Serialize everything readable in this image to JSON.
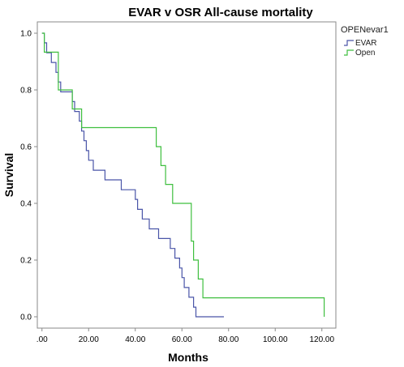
{
  "chart_data": {
    "type": "line",
    "title": "EVAR v OSR All-cause mortality",
    "xlabel": "Months",
    "ylabel": "Survival",
    "xlim": [
      -2,
      126
    ],
    "ylim": [
      -0.04,
      1.04
    ],
    "x_ticks": [
      0,
      20,
      40,
      60,
      80,
      100,
      120
    ],
    "x_tick_labels": [
      ".00",
      "20.00",
      "40.00",
      "60.00",
      "80.00",
      "100.00",
      "120.00"
    ],
    "y_ticks": [
      0.0,
      0.2,
      0.4,
      0.6,
      0.8,
      1.0
    ],
    "y_tick_labels": [
      "0.0",
      "0.2",
      "0.4",
      "0.6",
      "0.8",
      "1.0"
    ],
    "grid": false,
    "legend_title": "OPENevar1",
    "legend_position": "right",
    "step": true,
    "series": [
      {
        "name": "EVAR",
        "color": "#4a55a8",
        "x": [
          0,
          1,
          2,
          4,
          6,
          7,
          8,
          13,
          14,
          16,
          17,
          18,
          19,
          20,
          22,
          27,
          34,
          40,
          41,
          43,
          46,
          50,
          55,
          57,
          59,
          60,
          61,
          63,
          65,
          66,
          67,
          68,
          69,
          70,
          72,
          73,
          74,
          76,
          78
        ],
        "y": [
          1.0,
          0.966,
          0.931,
          0.897,
          0.862,
          0.828,
          0.793,
          0.759,
          0.724,
          0.69,
          0.655,
          0.621,
          0.586,
          0.552,
          0.517,
          0.483,
          0.448,
          0.414,
          0.379,
          0.345,
          0.31,
          0.276,
          0.241,
          0.207,
          0.172,
          0.138,
          0.103,
          0.069,
          0.034,
          0.0,
          0.0,
          0.0,
          0.0,
          0.0,
          0.0,
          0.0,
          0.0,
          0.0,
          0.0
        ]
      },
      {
        "name": "Open",
        "color": "#3fbf3f",
        "x": [
          0,
          1,
          7,
          13,
          17,
          49,
          51,
          53,
          56,
          64,
          65,
          67,
          69,
          70,
          121
        ],
        "y": [
          1.0,
          0.933,
          0.8,
          0.733,
          0.667,
          0.6,
          0.533,
          0.467,
          0.4,
          0.267,
          0.2,
          0.133,
          0.067,
          0.067,
          0.0
        ]
      }
    ]
  }
}
